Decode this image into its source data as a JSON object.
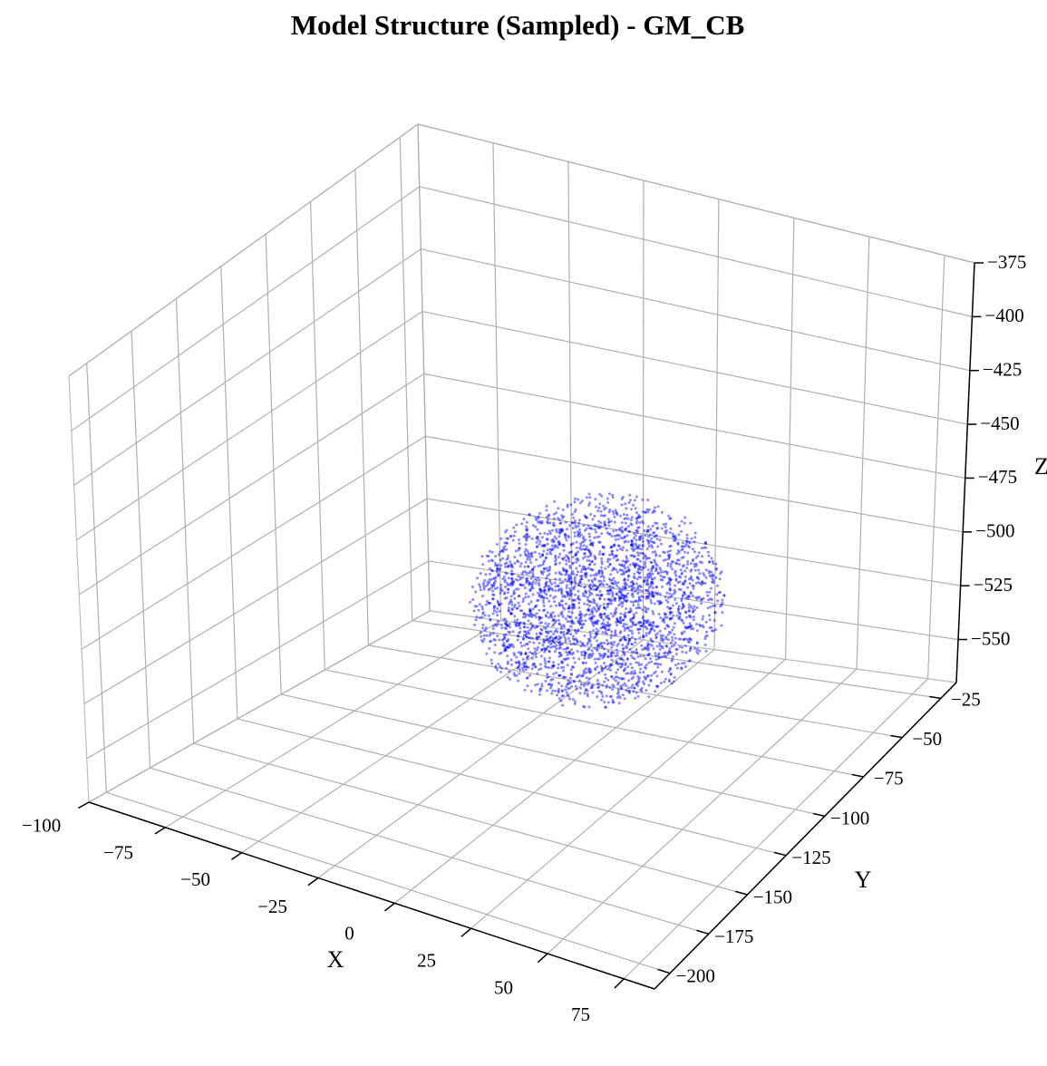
{
  "title": "Model Structure (Sampled) - GM_CB",
  "chart_data": {
    "type": "scatter",
    "projection": "3d",
    "title": "Model Structure (Sampled) - GM_CB",
    "xlabel": "X",
    "ylabel": "Y",
    "zlabel": "Z",
    "xlim": [
      -100,
      85
    ],
    "ylim": [
      -210,
      -15
    ],
    "zlim": [
      -570,
      -375
    ],
    "xticks": [
      -100,
      -75,
      -50,
      -25,
      0,
      25,
      50,
      75
    ],
    "xtick_labels": [
      "−100",
      "−75",
      "−50",
      "−25",
      "0",
      "25",
      "50",
      "75"
    ],
    "yticks": [
      -200,
      -175,
      -150,
      -125,
      -100,
      -75,
      -50,
      -25
    ],
    "ytick_labels": [
      "−200",
      "−175",
      "−150",
      "−125",
      "−100",
      "−75",
      "−50",
      "−25"
    ],
    "zticks": [
      -550,
      -525,
      -500,
      -475,
      -450,
      -425,
      -400,
      -375
    ],
    "ztick_labels": [
      "−550",
      "−525",
      "−500",
      "−475",
      "−450",
      "−425",
      "−400",
      "−375"
    ],
    "grid": true,
    "series": [
      {
        "marker_color": "#0000ff",
        "marker_alpha": 0.45,
        "distribution": "ellipsoid",
        "x_range": [
          -35,
          40
        ],
        "y_range": [
          -130,
          -50
        ],
        "z_range": [
          -545,
          -465
        ],
        "n_points": 3000
      }
    ]
  }
}
